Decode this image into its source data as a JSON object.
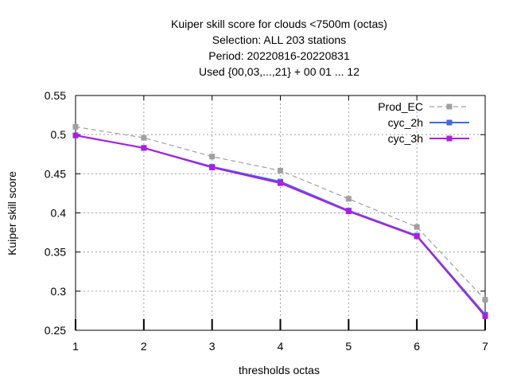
{
  "chart_data": {
    "type": "line",
    "title_lines": [
      "Kuiper skill score  for clouds <7500m (octas)",
      "Selection: ALL    203 stations",
      "Period: 20220816-20220831",
      "Used {00,03,...,21} + 00 01 ... 12"
    ],
    "xlabel": "thresholds octas",
    "ylabel": "Kuiper skill score",
    "x": [
      1,
      2,
      3,
      4,
      5,
      6,
      7
    ],
    "xlim": [
      1,
      7
    ],
    "ylim": [
      0.25,
      0.55
    ],
    "xticks": [
      "1",
      "2",
      "3",
      "4",
      "5",
      "6",
      "7"
    ],
    "yticks": [
      "0.25",
      "0.3",
      "0.35",
      "0.4",
      "0.45",
      "0.5",
      "0.55"
    ],
    "grid": true,
    "legend_position": "top-right",
    "series": [
      {
        "name": "Prod_EC",
        "values": [
          0.51,
          0.496,
          0.472,
          0.454,
          0.418,
          0.382,
          0.289
        ],
        "color": "#a0a0a0",
        "dashed": true
      },
      {
        "name": "cyc_2h",
        "values": [
          0.499,
          0.483,
          0.459,
          0.44,
          0.403,
          0.371,
          0.27
        ],
        "color": "#4169e1",
        "dashed": false
      },
      {
        "name": "cyc_3h",
        "values": [
          0.499,
          0.483,
          0.458,
          0.438,
          0.402,
          0.37,
          0.268
        ],
        "color": "#ad1be8",
        "dashed": false
      }
    ]
  }
}
